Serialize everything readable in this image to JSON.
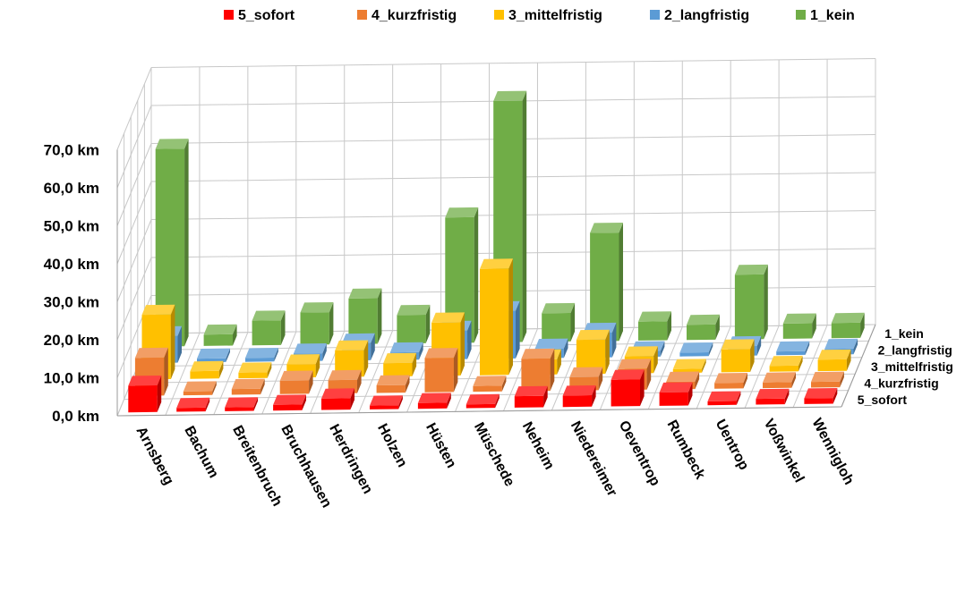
{
  "chart_data": {
    "type": "bar",
    "subtype": "3d-column",
    "title": "",
    "xlabel": "",
    "ylabel": "",
    "ylim": [
      0,
      70
    ],
    "ytick_labels": [
      "0,0 km",
      "10,0 km",
      "20,0 km",
      "30,0 km",
      "40,0 km",
      "50,0 km",
      "60,0 km",
      "70,0 km"
    ],
    "grid": true,
    "legend_position": "top",
    "legend_order": [
      "5_sofort",
      "4_kurzfristig",
      "3_mittelfristig",
      "2_langfristig",
      "1_kein"
    ],
    "depth_labels": [
      "1_kein",
      "2_langfristig",
      "3_mittelfristig",
      "4_kurzfristig",
      "5_sofort"
    ],
    "categories": [
      "Arnsberg",
      "Bachum",
      "Breitenbruch",
      "Bruchhausen",
      "Herdringen",
      "Holzen",
      "Hüsten",
      "Müschede",
      "Neheim",
      "Niedereimer",
      "Oeventrop",
      "Rumbeck",
      "Uentrop",
      "Voßwinkel",
      "Wennigloh"
    ],
    "series": [
      {
        "name": "1_kein",
        "color": "#70ad47",
        "values": [
          52.0,
          3.0,
          6.5,
          8.5,
          12.0,
          7.5,
          33.0,
          63.5,
          7.5,
          28.5,
          5.0,
          4.0,
          17.0,
          4.0,
          4.0
        ]
      },
      {
        "name": "2_langfristig",
        "color": "#5b9bd5",
        "values": [
          7.0,
          1.0,
          1.0,
          2.0,
          4.5,
          2.0,
          7.5,
          12.5,
          2.5,
          6.5,
          1.5,
          1.0,
          2.5,
          1.0,
          1.5
        ]
      },
      {
        "name": "3_mittelfristig",
        "color": "#ffc000",
        "values": [
          17.0,
          2.0,
          1.5,
          3.5,
          7.0,
          3.5,
          14.0,
          28.0,
          4.0,
          9.0,
          4.5,
          1.0,
          6.0,
          1.5,
          3.0
        ]
      },
      {
        "name": "4_kurzfristig",
        "color": "#ed7d31",
        "values": [
          10.0,
          1.0,
          1.5,
          3.5,
          3.5,
          2.0,
          9.0,
          1.5,
          8.5,
          3.5,
          5.5,
          2.0,
          1.5,
          1.5,
          1.5
        ]
      },
      {
        "name": "5_sofort",
        "color": "#ff0000",
        "values": [
          7.0,
          1.0,
          1.0,
          1.5,
          3.0,
          1.0,
          1.5,
          1.0,
          3.0,
          3.0,
          7.0,
          3.5,
          1.0,
          1.5,
          1.5
        ]
      }
    ]
  }
}
